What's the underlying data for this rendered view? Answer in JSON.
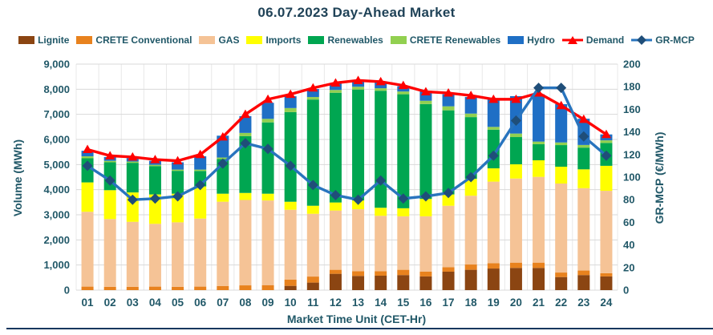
{
  "colors": {
    "text": "#215868",
    "title_text": "#1F4257",
    "gridline": "#D9D9D9",
    "vertical_gridline": "#E8E8E8",
    "bottom_rule": "#17375E"
  },
  "chart_data": {
    "type": "combo_stacked_bar_line",
    "title": "06.07.2023  Day-Ahead Market",
    "x_label": "Market Time Unit (CET-Hr)",
    "grid": true,
    "legend_position": "top",
    "categories": [
      "01",
      "02",
      "03",
      "04",
      "05",
      "06",
      "07",
      "08",
      "09",
      "10",
      "11",
      "12",
      "13",
      "14",
      "15",
      "16",
      "17",
      "18",
      "19",
      "20",
      "21",
      "22",
      "23",
      "24"
    ],
    "series": [
      {
        "name": "Lignite",
        "key": "lignite",
        "color": "#8B4512",
        "values": [
          0,
          0,
          0,
          0,
          0,
          0,
          0,
          0,
          0,
          170,
          300,
          650,
          565,
          575,
          600,
          545,
          735,
          810,
          860,
          885,
          885,
          520,
          600,
          545
        ]
      },
      {
        "name": "CRETE Conventional",
        "key": "crete-conventional",
        "color": "#E8821E",
        "values": [
          140,
          130,
          130,
          140,
          130,
          140,
          160,
          190,
          200,
          245,
          240,
          160,
          190,
          180,
          210,
          190,
          180,
          210,
          215,
          210,
          210,
          180,
          180,
          130
        ]
      },
      {
        "name": "GAS",
        "key": "gas",
        "color": "#F5C396",
        "values": [
          2980,
          2700,
          2590,
          2500,
          2570,
          2710,
          3360,
          3400,
          3370,
          2785,
          2500,
          2360,
          2465,
          2205,
          2130,
          2205,
          2445,
          2740,
          3245,
          3350,
          3415,
          3545,
          3280,
          3280
        ]
      },
      {
        "name": "Imports",
        "key": "imports",
        "color": "#FFFF00",
        "values": [
          1170,
          1150,
          1170,
          1170,
          1140,
          1280,
          320,
          280,
          270,
          320,
          320,
          320,
          350,
          320,
          320,
          690,
          450,
          670,
          530,
          565,
          660,
          670,
          750,
          995
        ]
      },
      {
        "name": "Renewables",
        "key": "renewables",
        "color": "#00A651",
        "values": [
          960,
          1110,
          1180,
          1130,
          910,
          615,
          1380,
          2260,
          2840,
          3570,
          4230,
          4370,
          4420,
          4660,
          4540,
          3780,
          3350,
          2460,
          1540,
          1085,
          640,
          860,
          865,
          910
        ]
      },
      {
        "name": "CRETE Renewables",
        "key": "crete-renewables",
        "color": "#92D050",
        "values": [
          80,
          60,
          50,
          50,
          50,
          55,
          60,
          130,
          140,
          160,
          100,
          110,
          110,
          100,
          110,
          130,
          160,
          140,
          110,
          140,
          105,
          105,
          105,
          105
        ]
      },
      {
        "name": "Hydro",
        "key": "hydro",
        "color": "#1F6FC5",
        "values": [
          220,
          150,
          140,
          160,
          290,
          530,
          870,
          670,
          640,
          470,
          320,
          260,
          260,
          250,
          210,
          400,
          480,
          660,
          1100,
          1490,
          1885,
          1525,
          1045,
          235
        ]
      }
    ],
    "lines": [
      {
        "name": "Demand",
        "key": "demand",
        "color": "#FF0000",
        "marker": "triangle",
        "marker_color": "#FF0000",
        "axis": "left",
        "values": [
          5600,
          5350,
          5300,
          5200,
          5150,
          5400,
          6100,
          7000,
          7600,
          7800,
          8050,
          8250,
          8350,
          8300,
          8150,
          7900,
          7850,
          7750,
          7600,
          7600,
          7850,
          7350,
          6800,
          6200
        ]
      },
      {
        "name": "GR-MCP",
        "key": "gr-mcp",
        "color": "#2874BE",
        "marker": "diamond",
        "marker_color": "#1F4E79",
        "axis": "right",
        "values": [
          110,
          97,
          80,
          81,
          83,
          93,
          112,
          130,
          125,
          110,
          93,
          84,
          80,
          97,
          81,
          83,
          86,
          100,
          119,
          150,
          179,
          179,
          136,
          119
        ]
      }
    ],
    "y_left": {
      "label": "Volume (MWh)",
      "min": 0,
      "max": 9000,
      "step": 1000,
      "tick_format": "thousands-comma"
    },
    "y_right": {
      "label": "GR-MCP (€/MWh)",
      "min": 0,
      "max": 200,
      "step": 20,
      "tick_format": "plain"
    }
  }
}
